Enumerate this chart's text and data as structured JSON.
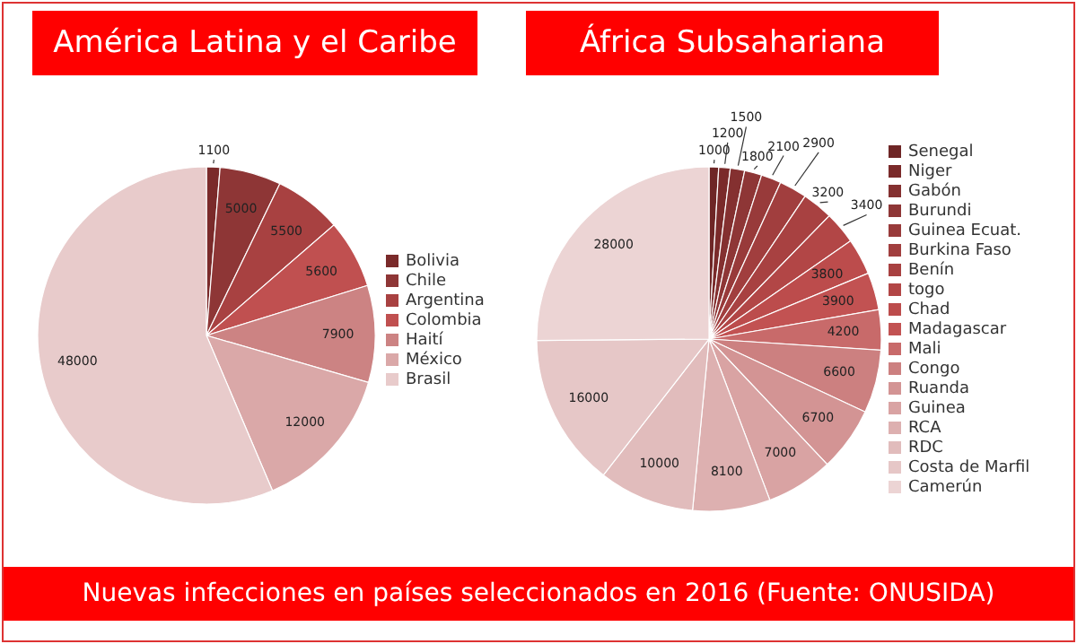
{
  "chart_data": [
    {
      "type": "pie",
      "title": "América Latina y el Caribe",
      "categories": [
        "Bolivia",
        "Chile",
        "Argentina",
        "Colombia",
        "Haití",
        "México",
        "Brasil"
      ],
      "values": [
        1100,
        5000,
        5500,
        5600,
        7900,
        12000,
        48000
      ],
      "colors": [
        "#7a2a2a",
        "#8e3636",
        "#a84141",
        "#c05050",
        "#cc8383",
        "#daa8a8",
        "#e8cbcb"
      ],
      "data_labels": true,
      "legend": "right",
      "annotations": [
        "Nuevas infecciones en países seleccionados en 2016 (Fuente: ONUSIDA)"
      ]
    },
    {
      "type": "pie",
      "title": "África Subsahariana",
      "categories": [
        "Senegal",
        "Niger",
        "Gabón",
        "Burundi",
        "Guinea Ecuat.",
        "Burkina Faso",
        "Benín",
        "togo",
        "Chad",
        "Madagascar",
        "Mali",
        "Congo",
        "Ruanda",
        "Guinea",
        "RCA",
        "RDC",
        "Costa de Marfil",
        "Camerún"
      ],
      "values": [
        1000,
        1200,
        1500,
        1800,
        2100,
        2900,
        3200,
        3400,
        3800,
        3900,
        4200,
        6600,
        6700,
        7000,
        8100,
        10000,
        16000,
        28000
      ],
      "colors": [
        "#6e2626",
        "#7a2a2a",
        "#843030",
        "#8e3636",
        "#983a3a",
        "#a13e3e",
        "#a84141",
        "#b24646",
        "#bc4c4c",
        "#c25252",
        "#c86a6a",
        "#cc8080",
        "#d39494",
        "#d9a3a3",
        "#ddb0b0",
        "#e1bcbc",
        "#e6c7c7",
        "#ecd4d4"
      ],
      "data_labels": true,
      "legend": "right"
    }
  ]
}
